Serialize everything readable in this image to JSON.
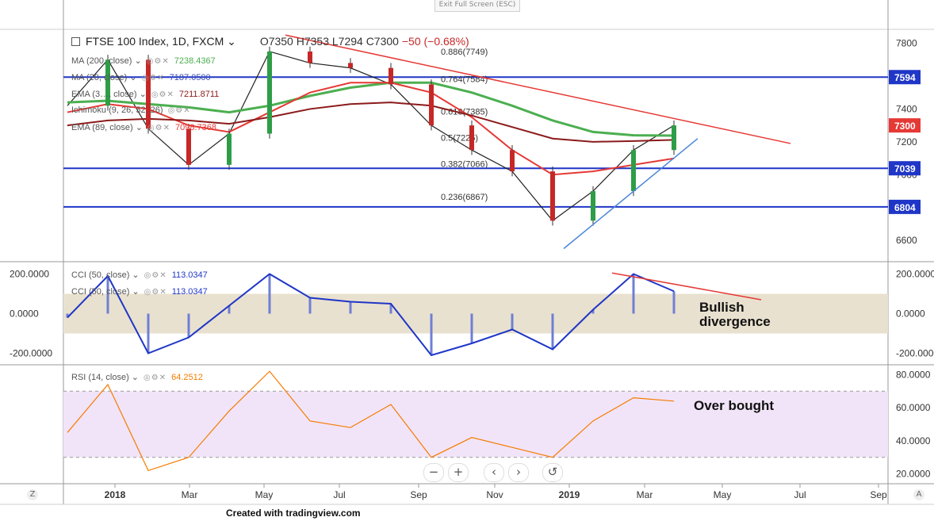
{
  "top_bar": {
    "exit_label": "Exit Full Screen (ESC)"
  },
  "header": {
    "symbol": "FTSE 100 Index, 1D, FXCM",
    "ohlc": "O7350 H7353 L7294 C7300",
    "change": "−50 (−0.68%)"
  },
  "indicators": [
    {
      "label": "MA (200, close)",
      "value": "7238.4367",
      "color": "#4caf50"
    },
    {
      "label": "MA (20, close)",
      "value": "7187.0500",
      "color": "#3f51b5"
    },
    {
      "label": "EMA (3…, close)",
      "value": "7211.8711",
      "color": "#8b1a1a"
    },
    {
      "label": "Ichimoku (9, 26, 52, 26)",
      "value": "",
      "color": "#888888"
    },
    {
      "label": "EMA (89, close)",
      "value": "7098.7368",
      "color": "#e53935"
    }
  ],
  "price_axis": {
    "ticks": [
      "7800",
      "7600",
      "7400",
      "7200",
      "7000",
      "6800",
      "6600"
    ]
  },
  "price_tags": [
    {
      "label": "7594",
      "color": "#1f36c7"
    },
    {
      "label": "7300",
      "color": "#e53935"
    },
    {
      "label": "7039",
      "color": "#1f36c7"
    },
    {
      "label": "6804",
      "color": "#1f36c7"
    }
  ],
  "fib_labels": [
    "0.886(7749)",
    "0.764(7584)",
    "0.618(7385)",
    "0.5(7225)",
    "0.382(7066)",
    "0.236(6867)"
  ],
  "cci_panel": {
    "label1": "CCI (50, close)",
    "value1": "113.0347",
    "label2": "CCI (50, close)",
    "value2": "113.0347",
    "ticks": [
      "200.0000",
      "0.0000",
      "-200.0000"
    ]
  },
  "rsi_panel": {
    "label": "RSI (14, close)",
    "value": "64.2512",
    "ticks": [
      "80.0000",
      "60.0000",
      "40.0000",
      "20.0000"
    ]
  },
  "time_axis": {
    "labels": [
      "2018",
      "Mar",
      "May",
      "Jul",
      "Sep",
      "Nov",
      "2019",
      "Mar",
      "May",
      "Jul",
      "Sep"
    ]
  },
  "annotations": {
    "bullish": "Bullish",
    "divergence": "divergence",
    "overbought": "Over bought"
  },
  "zoom": {
    "minus": "−",
    "plus": "+",
    "left": "‹",
    "right": "›",
    "reset": "↺"
  },
  "footer": {
    "created": "Created with tradingview.com"
  },
  "corner": {
    "left": "Z",
    "right": "A"
  },
  "chart_data": [
    {
      "type": "line",
      "title": "FTSE 100 Index, 1D, FXCM",
      "ylim": [
        6480,
        7880
      ],
      "x": [
        "2017-12",
        "2018-01",
        "2018-02",
        "2018-03",
        "2018-04",
        "2018-05",
        "2018-06",
        "2018-07",
        "2018-08",
        "2018-09",
        "2018-10",
        "2018-11",
        "2018-12",
        "2019-01",
        "2019-02",
        "2019-03"
      ],
      "series": [
        {
          "name": "Close",
          "values": [
            7420,
            7700,
            7280,
            7060,
            7250,
            7750,
            7680,
            7650,
            7550,
            7300,
            7150,
            7020,
            6720,
            6900,
            7150,
            7300
          ]
        },
        {
          "name": "MA (200, close)",
          "values": [
            7440,
            7450,
            7430,
            7410,
            7380,
            7420,
            7480,
            7530,
            7560,
            7560,
            7500,
            7420,
            7330,
            7260,
            7240,
            7238
          ]
        },
        {
          "name": "EMA (89, close)",
          "values": [
            7380,
            7430,
            7400,
            7300,
            7260,
            7380,
            7500,
            7560,
            7560,
            7500,
            7350,
            7150,
            7000,
            7020,
            7060,
            7099
          ]
        },
        {
          "name": "EMA (3…, close)",
          "values": [
            7300,
            7330,
            7340,
            7330,
            7310,
            7350,
            7400,
            7430,
            7440,
            7420,
            7360,
            7290,
            7220,
            7200,
            7205,
            7212
          ]
        }
      ],
      "levels": [
        7594,
        7039,
        6804
      ],
      "fibonacci": [
        7749,
        7584,
        7385,
        7225,
        7066,
        6867
      ]
    },
    {
      "type": "line",
      "title": "CCI (50, close)",
      "ylim": [
        -250,
        250
      ],
      "x": [
        "2017-12",
        "2018-01",
        "2018-02",
        "2018-03",
        "2018-04",
        "2018-05",
        "2018-06",
        "2018-07",
        "2018-08",
        "2018-09",
        "2018-10",
        "2018-11",
        "2018-12",
        "2019-01",
        "2019-02",
        "2019-03"
      ],
      "series": [
        {
          "name": "CCI (50, close)",
          "values": [
            -20,
            190,
            -200,
            -120,
            40,
            200,
            80,
            60,
            50,
            -210,
            -150,
            -80,
            -180,
            20,
            200,
            113
          ]
        }
      ],
      "band": [
        -100,
        100
      ]
    },
    {
      "type": "line",
      "title": "RSI (14, close)",
      "ylim": [
        15,
        85
      ],
      "x": [
        "2017-12",
        "2018-01",
        "2018-02",
        "2018-03",
        "2018-04",
        "2018-05",
        "2018-06",
        "2018-07",
        "2018-08",
        "2018-09",
        "2018-10",
        "2018-11",
        "2018-12",
        "2019-01",
        "2019-02",
        "2019-03"
      ],
      "series": [
        {
          "name": "RSI (14, close)",
          "values": [
            45,
            74,
            22,
            30,
            58,
            82,
            52,
            48,
            62,
            30,
            42,
            36,
            30,
            52,
            66,
            64
          ]
        }
      ],
      "band": [
        30,
        70
      ]
    }
  ]
}
